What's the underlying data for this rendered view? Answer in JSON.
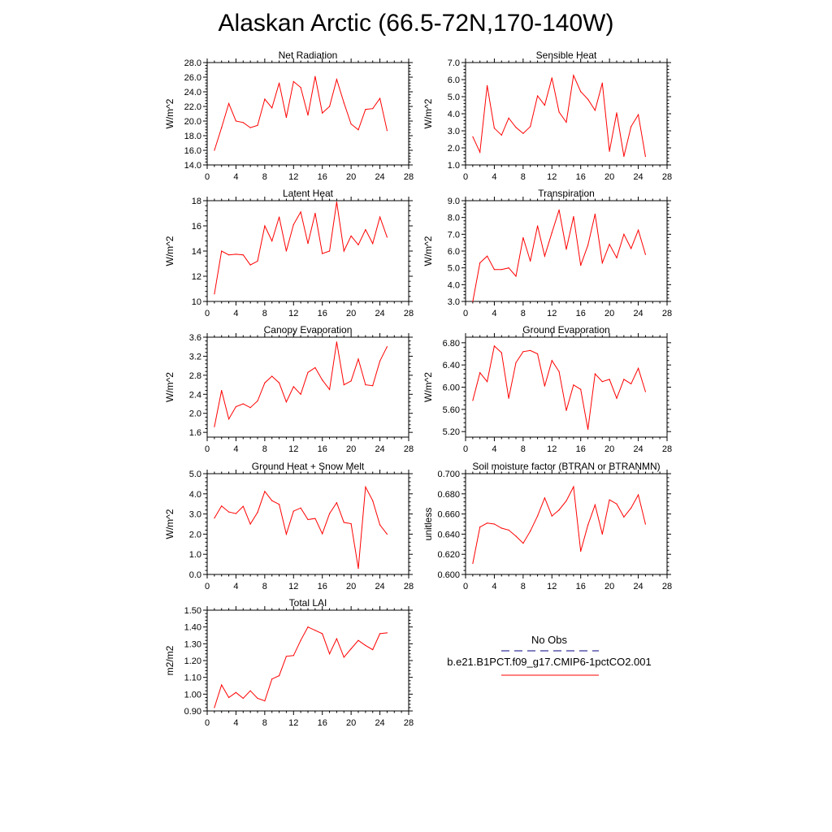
{
  "title": "Alaskan Arctic (66.5-72N,170-140W)",
  "colors": {
    "model_line": "#ff0000",
    "obs_line": "#000080",
    "axis": "#000000"
  },
  "legend": {
    "obs_label": "No Obs",
    "model_label": "b.e21.B1PCT.f09_g17.CMIP6-1pctCO2.001"
  },
  "chart_data": [
    {
      "type": "line",
      "title": "Net Radiation",
      "ylabel": "W/m^2",
      "xlabel": "",
      "xlim": [
        0,
        28
      ],
      "ylim": [
        14,
        28
      ],
      "xticks": [
        0,
        4,
        8,
        12,
        16,
        20,
        24,
        28
      ],
      "xtick_labels": [
        "0",
        "4",
        "8",
        "12",
        "16",
        "20",
        "24",
        "28"
      ],
      "yticks": [
        14,
        16,
        18,
        20,
        22,
        24,
        26,
        28
      ],
      "ytick_labels": [
        "14.0",
        "16.0",
        "18.0",
        "20.0",
        "22.0",
        "24.0",
        "26.0",
        "28.0"
      ],
      "series": [
        {
          "x": [
            1,
            2,
            3,
            4,
            5,
            6,
            7,
            8,
            9,
            10,
            11,
            12,
            13,
            14,
            15,
            16,
            17,
            18,
            19,
            20,
            21,
            22,
            23,
            24,
            25
          ],
          "values": [
            16.0,
            19.1,
            22.4,
            20.0,
            19.8,
            19.1,
            19.4,
            23.0,
            21.8,
            25.2,
            20.5,
            25.4,
            24.6,
            20.8,
            26.1,
            21.1,
            22.0,
            25.7,
            22.5,
            19.6,
            18.8,
            21.6,
            21.7,
            23.1,
            18.7
          ]
        }
      ]
    },
    {
      "type": "line",
      "title": "Sensible Heat",
      "ylabel": "W/m^2",
      "xlabel": "",
      "xlim": [
        0,
        28
      ],
      "ylim": [
        1,
        7
      ],
      "xticks": [
        0,
        4,
        8,
        12,
        16,
        20,
        24,
        28
      ],
      "xtick_labels": [
        "0",
        "4",
        "8",
        "12",
        "16",
        "20",
        "24",
        "28"
      ],
      "yticks": [
        1,
        2,
        3,
        4,
        5,
        6,
        7
      ],
      "ytick_labels": [
        "1.0",
        "2.0",
        "3.0",
        "4.0",
        "5.0",
        "6.0",
        "7.0"
      ],
      "series": [
        {
          "x": [
            1,
            2,
            3,
            4,
            5,
            6,
            7,
            8,
            9,
            10,
            11,
            12,
            13,
            14,
            15,
            16,
            17,
            18,
            19,
            20,
            21,
            22,
            23,
            24,
            25
          ],
          "values": [
            2.65,
            1.75,
            5.65,
            3.15,
            2.75,
            3.75,
            3.2,
            2.85,
            3.25,
            5.05,
            4.5,
            6.1,
            4.1,
            3.5,
            6.25,
            5.3,
            4.85,
            4.2,
            5.8,
            1.8,
            4.05,
            1.5,
            3.25,
            3.95,
            1.5
          ]
        }
      ]
    },
    {
      "type": "line",
      "title": "Latent Heat",
      "ylabel": "W/m^2",
      "xlabel": "",
      "xlim": [
        0,
        28
      ],
      "ylim": [
        10,
        18
      ],
      "xticks": [
        0,
        4,
        8,
        12,
        16,
        20,
        24,
        28
      ],
      "xtick_labels": [
        "0",
        "4",
        "8",
        "12",
        "16",
        "20",
        "24",
        "28"
      ],
      "yticks": [
        10,
        12,
        14,
        16,
        18
      ],
      "ytick_labels": [
        "10",
        "12",
        "14",
        "16",
        "18"
      ],
      "series": [
        {
          "x": [
            1,
            2,
            3,
            4,
            5,
            6,
            7,
            8,
            9,
            10,
            11,
            12,
            13,
            14,
            15,
            16,
            17,
            18,
            19,
            20,
            21,
            22,
            23,
            24,
            25
          ],
          "values": [
            10.6,
            14.0,
            13.7,
            13.75,
            13.7,
            12.9,
            13.2,
            16.0,
            14.8,
            16.7,
            14.0,
            16.1,
            17.1,
            14.6,
            17.0,
            13.8,
            14.0,
            17.9,
            14.0,
            15.2,
            14.5,
            15.7,
            14.6,
            16.7,
            15.1
          ]
        }
      ]
    },
    {
      "type": "line",
      "title": "Transpiration",
      "ylabel": "W/m^2",
      "xlabel": "",
      "xlim": [
        0,
        28
      ],
      "ylim": [
        3,
        9
      ],
      "xticks": [
        0,
        4,
        8,
        12,
        16,
        20,
        24,
        28
      ],
      "xtick_labels": [
        "0",
        "4",
        "8",
        "12",
        "16",
        "20",
        "24",
        "28"
      ],
      "yticks": [
        3,
        4,
        5,
        6,
        7,
        8,
        9
      ],
      "ytick_labels": [
        "3.0",
        "4.0",
        "5.0",
        "6.0",
        "7.0",
        "8.0",
        "9.0"
      ],
      "series": [
        {
          "x": [
            1,
            2,
            3,
            4,
            5,
            6,
            7,
            8,
            9,
            10,
            11,
            12,
            13,
            14,
            15,
            16,
            17,
            18,
            19,
            20,
            21,
            22,
            23,
            24,
            25
          ],
          "values": [
            3.0,
            5.3,
            5.7,
            4.9,
            4.9,
            5.0,
            4.5,
            6.8,
            5.4,
            7.5,
            5.7,
            7.1,
            8.45,
            6.1,
            8.05,
            5.15,
            6.35,
            8.2,
            5.3,
            6.4,
            5.6,
            7.0,
            6.15,
            7.25,
            5.8
          ]
        }
      ]
    },
    {
      "type": "line",
      "title": "Canopy Evaporation",
      "ylabel": "W/m^2",
      "xlabel": "",
      "xlim": [
        0,
        28
      ],
      "ylim": [
        1.5,
        3.6
      ],
      "xticks": [
        0,
        4,
        8,
        12,
        16,
        20,
        24,
        28
      ],
      "xtick_labels": [
        "0",
        "4",
        "8",
        "12",
        "16",
        "20",
        "24",
        "28"
      ],
      "yticks": [
        1.6,
        2.0,
        2.4,
        2.8,
        3.2,
        3.6
      ],
      "ytick_labels": [
        "1.6",
        "2.0",
        "2.4",
        "2.8",
        "3.2",
        "3.6"
      ],
      "series": [
        {
          "x": [
            1,
            2,
            3,
            4,
            5,
            6,
            7,
            8,
            9,
            10,
            11,
            12,
            13,
            14,
            15,
            16,
            17,
            18,
            19,
            20,
            21,
            22,
            23,
            24,
            25
          ],
          "values": [
            1.72,
            2.48,
            1.88,
            2.14,
            2.2,
            2.12,
            2.26,
            2.64,
            2.78,
            2.64,
            2.24,
            2.56,
            2.4,
            2.86,
            2.96,
            2.7,
            2.5,
            3.5,
            2.6,
            2.68,
            3.14,
            2.6,
            2.58,
            3.1,
            3.4
          ]
        }
      ]
    },
    {
      "type": "line",
      "title": "Ground Evaporation",
      "ylabel": "W/m^2",
      "xlabel": "",
      "xlim": [
        0,
        28
      ],
      "ylim": [
        5.1,
        6.9
      ],
      "xticks": [
        0,
        4,
        8,
        12,
        16,
        20,
        24,
        28
      ],
      "xtick_labels": [
        "0",
        "4",
        "8",
        "12",
        "16",
        "20",
        "24",
        "28"
      ],
      "yticks": [
        5.2,
        5.6,
        6.0,
        6.4,
        6.8
      ],
      "ytick_labels": [
        "5.20",
        "5.60",
        "6.00",
        "6.40",
        "6.80"
      ],
      "series": [
        {
          "x": [
            1,
            2,
            3,
            4,
            5,
            6,
            7,
            8,
            9,
            10,
            11,
            12,
            13,
            14,
            15,
            16,
            17,
            18,
            19,
            20,
            21,
            22,
            23,
            24,
            25
          ],
          "values": [
            5.76,
            6.26,
            6.1,
            6.74,
            6.62,
            5.8,
            6.44,
            6.64,
            6.66,
            6.6,
            6.02,
            6.48,
            6.28,
            5.58,
            6.04,
            5.96,
            5.24,
            6.24,
            6.1,
            6.14,
            5.8,
            6.14,
            6.06,
            6.34,
            5.92
          ]
        }
      ]
    },
    {
      "type": "line",
      "title": "Ground Heat + Snow Melt",
      "ylabel": "W/m^2",
      "xlabel": "",
      "xlim": [
        0,
        28
      ],
      "ylim": [
        0,
        5
      ],
      "xticks": [
        0,
        4,
        8,
        12,
        16,
        20,
        24,
        28
      ],
      "xtick_labels": [
        "0",
        "4",
        "8",
        "12",
        "16",
        "20",
        "24",
        "28"
      ],
      "yticks": [
        0,
        1,
        2,
        3,
        4,
        5
      ],
      "ytick_labels": [
        "0.0",
        "1.0",
        "2.0",
        "3.0",
        "4.0",
        "5.0"
      ],
      "series": [
        {
          "x": [
            1,
            2,
            3,
            4,
            5,
            6,
            7,
            8,
            9,
            10,
            11,
            12,
            13,
            14,
            15,
            16,
            17,
            18,
            19,
            20,
            21,
            22,
            23,
            24,
            25
          ],
          "values": [
            2.8,
            3.4,
            3.1,
            3.02,
            3.38,
            2.5,
            3.08,
            4.12,
            3.66,
            3.48,
            2.0,
            3.14,
            3.3,
            2.72,
            2.78,
            2.02,
            3.02,
            3.56,
            2.58,
            2.52,
            0.3,
            4.34,
            3.66,
            2.46,
            2.0
          ]
        }
      ]
    },
    {
      "type": "line",
      "title": "Soil moisture factor (BTRAN or BTRANMN)",
      "ylabel": "unitless",
      "xlabel": "",
      "xlim": [
        0,
        28
      ],
      "ylim": [
        0.6,
        0.7
      ],
      "xticks": [
        0,
        4,
        8,
        12,
        16,
        20,
        24,
        28
      ],
      "xtick_labels": [
        "0",
        "4",
        "8",
        "12",
        "16",
        "20",
        "24",
        "28"
      ],
      "yticks": [
        0.6,
        0.62,
        0.64,
        0.66,
        0.68,
        0.7
      ],
      "ytick_labels": [
        "0.600",
        "0.620",
        "0.640",
        "0.660",
        "0.680",
        "0.700"
      ],
      "series": [
        {
          "x": [
            1,
            2,
            3,
            4,
            5,
            6,
            7,
            8,
            9,
            10,
            11,
            12,
            13,
            14,
            15,
            16,
            17,
            18,
            19,
            20,
            21,
            22,
            23,
            24,
            25
          ],
          "values": [
            0.611,
            0.647,
            0.651,
            0.65,
            0.646,
            0.644,
            0.638,
            0.631,
            0.643,
            0.658,
            0.676,
            0.658,
            0.664,
            0.673,
            0.687,
            0.623,
            0.649,
            0.669,
            0.64,
            0.674,
            0.67,
            0.657,
            0.666,
            0.679,
            0.65
          ]
        }
      ]
    },
    {
      "type": "line",
      "title": "Total LAI",
      "ylabel": "m2/m2",
      "xlabel": "",
      "xlim": [
        0,
        28
      ],
      "ylim": [
        0.9,
        1.5
      ],
      "xticks": [
        0,
        4,
        8,
        12,
        16,
        20,
        24,
        28
      ],
      "xtick_labels": [
        "0",
        "4",
        "8",
        "12",
        "16",
        "20",
        "24",
        "28"
      ],
      "yticks": [
        0.9,
        1.0,
        1.1,
        1.2,
        1.3,
        1.4,
        1.5
      ],
      "ytick_labels": [
        "0.90",
        "1.00",
        "1.10",
        "1.20",
        "1.30",
        "1.40",
        "1.50"
      ],
      "series": [
        {
          "x": [
            1,
            2,
            3,
            4,
            5,
            6,
            7,
            8,
            9,
            10,
            11,
            12,
            13,
            14,
            15,
            16,
            17,
            18,
            19,
            20,
            21,
            22,
            23,
            24,
            25
          ],
          "values": [
            0.92,
            1.055,
            0.98,
            1.01,
            0.975,
            1.02,
            0.975,
            0.96,
            1.09,
            1.11,
            1.225,
            1.23,
            1.32,
            1.4,
            1.38,
            1.36,
            1.24,
            1.33,
            1.22,
            1.27,
            1.32,
            1.29,
            1.265,
            1.36,
            1.365
          ]
        }
      ]
    }
  ]
}
